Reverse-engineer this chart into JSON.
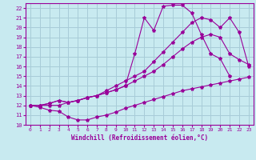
{
  "xlabel": "Windchill (Refroidissement éolien,°C)",
  "bg_color": "#c8eaf0",
  "grid_color": "#a8ccd8",
  "line_color": "#990099",
  "xlim": [
    -0.5,
    23.5
  ],
  "ylim": [
    10,
    22.5
  ],
  "xticks": [
    0,
    1,
    2,
    3,
    4,
    5,
    6,
    7,
    8,
    9,
    10,
    11,
    12,
    13,
    14,
    15,
    16,
    17,
    18,
    19,
    20,
    21,
    22,
    23
  ],
  "yticks": [
    10,
    11,
    12,
    13,
    14,
    15,
    16,
    17,
    18,
    19,
    20,
    21,
    22
  ],
  "curve1_x": [
    0,
    1,
    2,
    3,
    4,
    5,
    6,
    7,
    8,
    9,
    10,
    11,
    12,
    13,
    14,
    15,
    16,
    17,
    18,
    19,
    20,
    21,
    22,
    23
  ],
  "curve1_y": [
    12.0,
    11.8,
    11.5,
    11.4,
    10.8,
    10.5,
    10.5,
    10.8,
    11.0,
    11.3,
    11.7,
    12.0,
    12.3,
    12.6,
    12.9,
    13.2,
    13.5,
    13.7,
    13.9,
    14.1,
    14.3,
    14.5,
    14.7,
    14.9
  ],
  "curve2_x": [
    0,
    1,
    2,
    3,
    4,
    5,
    6,
    7,
    8,
    9,
    10,
    11,
    12,
    13,
    14,
    15,
    16,
    17,
    18,
    19,
    20,
    21,
    22,
    23
  ],
  "curve2_y": [
    12.0,
    12.0,
    12.2,
    12.5,
    12.3,
    12.5,
    12.8,
    13.0,
    13.3,
    13.6,
    14.0,
    14.5,
    15.0,
    15.5,
    16.2,
    17.0,
    17.8,
    18.5,
    19.0,
    19.3,
    19.0,
    17.3,
    16.7,
    16.2
  ],
  "curve3_x": [
    0,
    1,
    2,
    3,
    4,
    5,
    6,
    7,
    8,
    9,
    10,
    11,
    12,
    13,
    14,
    15,
    16,
    17,
    18,
    19,
    20,
    21,
    22,
    23
  ],
  "curve3_y": [
    12.0,
    12.0,
    12.2,
    12.5,
    12.3,
    12.5,
    12.8,
    13.0,
    13.3,
    13.6,
    14.0,
    17.3,
    21.0,
    19.7,
    22.2,
    22.3,
    22.3,
    21.5,
    19.3,
    17.3,
    16.8,
    15.0,
    null,
    null
  ],
  "curve4_x": [
    0,
    1,
    2,
    3,
    4,
    5,
    6,
    7,
    8,
    9,
    10,
    11,
    12,
    13,
    14,
    15,
    16,
    17,
    18,
    19,
    20,
    21,
    22,
    23
  ],
  "curve4_y": [
    12.0,
    12.0,
    12.0,
    12.0,
    12.3,
    12.5,
    12.8,
    13.0,
    13.5,
    14.0,
    14.5,
    15.0,
    15.5,
    16.5,
    17.5,
    18.5,
    19.5,
    20.5,
    21.0,
    20.8,
    20.0,
    21.0,
    19.5,
    16.0
  ]
}
